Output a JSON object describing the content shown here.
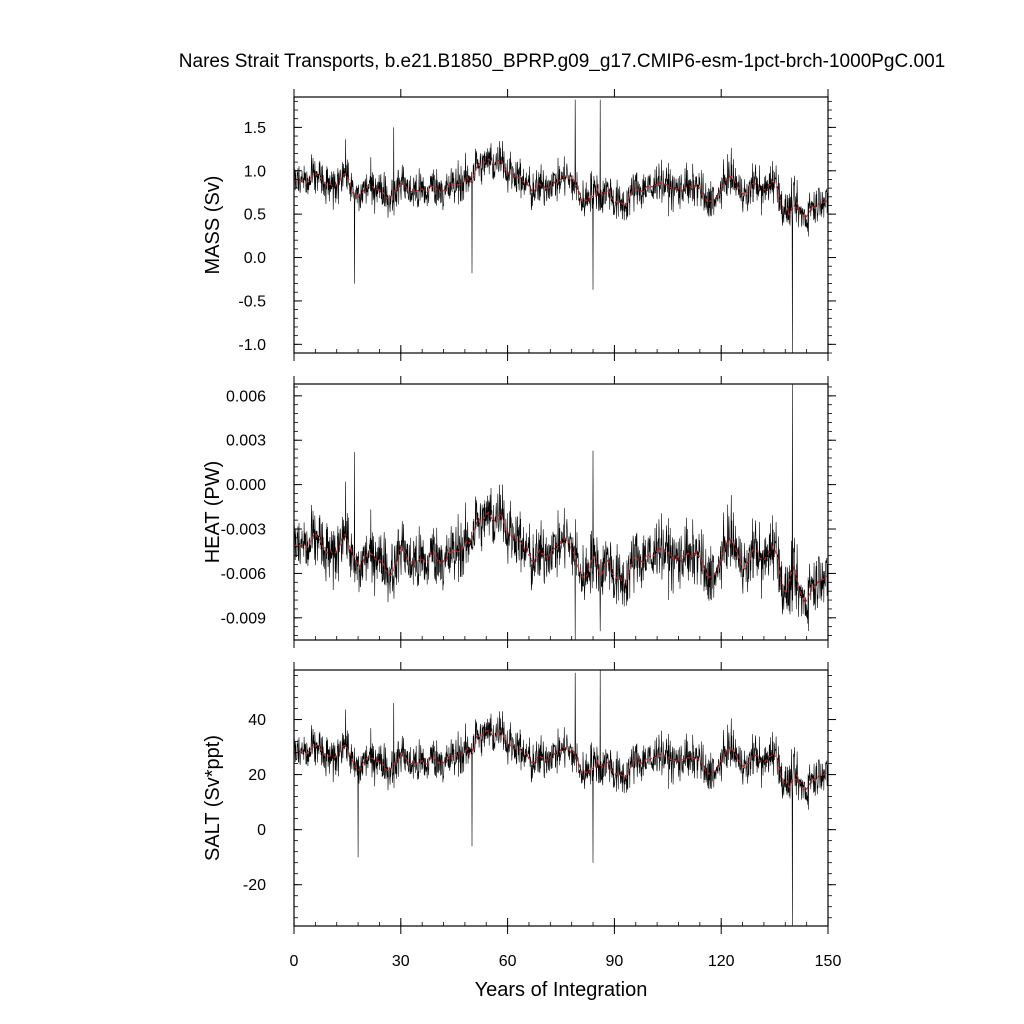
{
  "chart_data": {
    "type": "line",
    "title": "Nares Strait Transports, b.e21.B1850_BPRP.g09_g17.CMIP6-esm-1pct-brch-1000PgC.001",
    "xlabel": "Years of Integration",
    "xlim": [
      0,
      150
    ],
    "xticks": [
      0,
      30,
      60,
      90,
      120,
      150
    ],
    "xtick_labels": [
      "0",
      "30",
      "60",
      "90",
      "120",
      "150"
    ],
    "colors": {
      "raw": "#000000",
      "smoothed": "#cc2222"
    },
    "panels": [
      {
        "ylabel": "MASS (Sv)",
        "ylim": [
          -1.1,
          1.85
        ],
        "yticks": [
          -1.0,
          -0.5,
          0.0,
          0.5,
          1.0,
          1.5
        ],
        "ytick_labels": [
          "-1.0",
          "-0.5",
          "0.0",
          "0.5",
          "1.0",
          "1.5"
        ],
        "mean": 0.82,
        "amplitude": 0.2,
        "spikes": [
          [
            17,
            -0.3
          ],
          [
            28,
            1.5
          ],
          [
            50,
            -0.18
          ],
          [
            79,
            1.82
          ],
          [
            84,
            -0.37
          ],
          [
            86,
            1.82
          ],
          [
            140,
            -1.1
          ]
        ]
      },
      {
        "ylabel": "HEAT (PW)",
        "ylim": [
          -0.0105,
          0.0068
        ],
        "yticks": [
          -0.009,
          -0.006,
          -0.003,
          0.0,
          0.003,
          0.006
        ],
        "ytick_labels": [
          "-0.009",
          "-0.006",
          "-0.003",
          "0.000",
          "0.003",
          "0.006"
        ],
        "mean": -0.0047,
        "amplitude": 0.0018,
        "spikes": [
          [
            17,
            0.0022
          ],
          [
            84,
            0.0023
          ],
          [
            79,
            -0.0105
          ],
          [
            86,
            -0.0099
          ],
          [
            140,
            0.0068
          ]
        ]
      },
      {
        "ylabel": "SALT (Sv*ppt)",
        "ylim": [
          -35,
          58
        ],
        "yticks": [
          -20,
          0,
          20,
          40
        ],
        "ytick_labels": [
          "-20",
          "0",
          "20",
          "40"
        ],
        "mean": 26,
        "amplitude": 6.5,
        "spikes": [
          [
            18,
            -10
          ],
          [
            28,
            46
          ],
          [
            50,
            -6
          ],
          [
            79,
            57
          ],
          [
            84,
            -12
          ],
          [
            86,
            58
          ],
          [
            140,
            -35
          ]
        ]
      }
    ]
  }
}
